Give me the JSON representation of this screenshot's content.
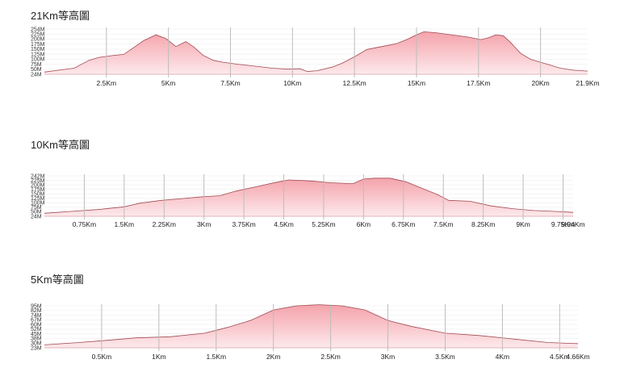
{
  "chart_data": [
    {
      "type": "area",
      "title": "21Km等高圖",
      "x_unit": "Km",
      "xlim": [
        0,
        21.9
      ],
      "ylim": [
        24,
        254
      ],
      "y_ticks": [
        "254M",
        "225M",
        "200M",
        "175M",
        "150M",
        "125M",
        "100M",
        "75M",
        "50M",
        "24M"
      ],
      "x_ticks": [
        {
          "x": 2.5,
          "label": "2.5Km"
        },
        {
          "x": 5,
          "label": "5Km"
        },
        {
          "x": 7.5,
          "label": "7.5Km"
        },
        {
          "x": 10,
          "label": "10Km"
        },
        {
          "x": 12.5,
          "label": "12.5Km"
        },
        {
          "x": 15,
          "label": "15Km"
        },
        {
          "x": 17.5,
          "label": "17.5Km"
        },
        {
          "x": 20,
          "label": "20Km"
        },
        {
          "x": 21.9,
          "label": "21.9Km"
        }
      ],
      "x": [
        0,
        0.6,
        1.2,
        1.8,
        2.2,
        2.8,
        3.2,
        3.6,
        4.0,
        4.5,
        4.9,
        5.3,
        5.7,
        6.0,
        6.4,
        6.8,
        7.2,
        7.8,
        8.5,
        9.2,
        9.8,
        10.3,
        10.6,
        11.0,
        11.6,
        12.0,
        12.6,
        13.0,
        13.6,
        14.2,
        14.6,
        15.0,
        15.3,
        15.8,
        16.4,
        17.0,
        17.6,
        17.9,
        18.2,
        18.5,
        18.8,
        19.2,
        19.6,
        20.0,
        20.4,
        20.8,
        21.3,
        21.9
      ],
      "y": [
        35,
        45,
        55,
        95,
        110,
        120,
        125,
        160,
        195,
        225,
        205,
        165,
        190,
        165,
        120,
        95,
        85,
        75,
        65,
        55,
        50,
        52,
        38,
        42,
        60,
        80,
        120,
        150,
        165,
        180,
        200,
        225,
        240,
        235,
        225,
        215,
        200,
        210,
        225,
        220,
        185,
        130,
        100,
        85,
        70,
        55,
        45,
        40
      ]
    },
    {
      "type": "area",
      "title": "10Km等高圖",
      "x_unit": "Km",
      "xlim": [
        0,
        9.94
      ],
      "ylim": [
        24,
        242
      ],
      "y_ticks": [
        "242M",
        "225M",
        "200M",
        "175M",
        "150M",
        "125M",
        "100M",
        "75M",
        "50M",
        "24M"
      ],
      "x_ticks": [
        {
          "x": 0.75,
          "label": "0.75Km"
        },
        {
          "x": 1.5,
          "label": "1.5Km"
        },
        {
          "x": 2.25,
          "label": "2.25Km"
        },
        {
          "x": 3,
          "label": "3Km"
        },
        {
          "x": 3.75,
          "label": "3.75Km"
        },
        {
          "x": 4.5,
          "label": "4.5Km"
        },
        {
          "x": 5.25,
          "label": "5.25Km"
        },
        {
          "x": 6,
          "label": "6Km"
        },
        {
          "x": 6.75,
          "label": "6.75Km"
        },
        {
          "x": 7.5,
          "label": "7.5Km"
        },
        {
          "x": 8.25,
          "label": "8.25Km"
        },
        {
          "x": 9,
          "label": "9Km"
        },
        {
          "x": 9.75,
          "label": "9.75Km"
        },
        {
          "x": 9.94,
          "label": "9.94Km"
        }
      ],
      "x": [
        0,
        0.5,
        1.0,
        1.5,
        1.8,
        2.2,
        2.6,
        3.0,
        3.3,
        3.6,
        4.0,
        4.4,
        4.6,
        5.0,
        5.4,
        5.8,
        6.0,
        6.2,
        6.5,
        6.8,
        7.1,
        7.4,
        7.6,
        8.0,
        8.4,
        8.8,
        9.2,
        9.6,
        9.94
      ],
      "y": [
        40,
        50,
        60,
        75,
        95,
        110,
        120,
        130,
        135,
        160,
        185,
        210,
        220,
        215,
        205,
        200,
        225,
        230,
        230,
        210,
        175,
        140,
        110,
        105,
        80,
        65,
        55,
        50,
        45
      ]
    },
    {
      "type": "area",
      "title": "5Km等高圖",
      "x_unit": "Km",
      "xlim": [
        0,
        4.66
      ],
      "ylim": [
        23,
        95
      ],
      "y_ticks": [
        "95M",
        "82M",
        "74M",
        "67M",
        "60M",
        "52M",
        "45M",
        "38M",
        "30M",
        "23M"
      ],
      "x_ticks": [
        {
          "x": 0.5,
          "label": "0.5Km"
        },
        {
          "x": 1,
          "label": "1Km"
        },
        {
          "x": 1.5,
          "label": "1.5Km"
        },
        {
          "x": 2,
          "label": "2Km"
        },
        {
          "x": 2.5,
          "label": "2.5Km"
        },
        {
          "x": 3,
          "label": "3Km"
        },
        {
          "x": 3.5,
          "label": "3.5Km"
        },
        {
          "x": 4,
          "label": "4Km"
        },
        {
          "x": 4.5,
          "label": "4.5Km"
        },
        {
          "x": 4.66,
          "label": "4.66Km"
        }
      ],
      "x": [
        0,
        0.3,
        0.5,
        0.8,
        1.1,
        1.4,
        1.6,
        1.8,
        2.0,
        2.2,
        2.4,
        2.6,
        2.8,
        3.0,
        3.2,
        3.5,
        3.8,
        4.1,
        4.4,
        4.66
      ],
      "y": [
        28,
        32,
        35,
        40,
        42,
        48,
        58,
        70,
        88,
        95,
        97,
        95,
        88,
        70,
        60,
        48,
        44,
        38,
        32,
        30
      ]
    }
  ]
}
